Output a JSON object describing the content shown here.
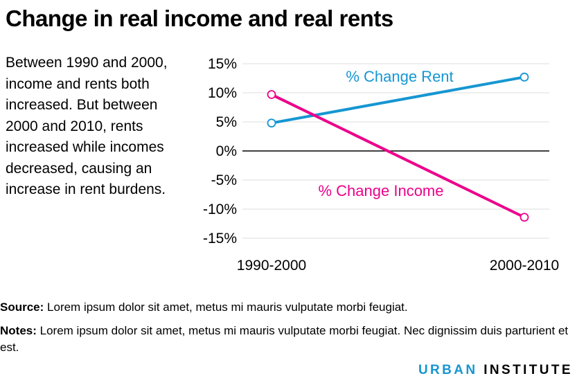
{
  "title": "Change in real income and real rents",
  "description": "Between 1990 and 2000, income and rents both increased. But between 2000 and 2010, rents increased while incomes decreased, causing an increase in rent burdens.",
  "chart_data": {
    "type": "line",
    "categories": [
      "1990-2000",
      "2000-2010"
    ],
    "series": [
      {
        "name": "% Change Rent",
        "values": [
          4.8,
          12.7
        ],
        "color": "#1696d2"
      },
      {
        "name": "% Change Income",
        "values": [
          9.7,
          -11.4
        ],
        "color": "#ec008b"
      }
    ],
    "y_ticks": [
      "15%",
      "10%",
      "5%",
      "0%",
      "-5%",
      "-10%",
      "-15%"
    ],
    "y_tick_values": [
      15,
      10,
      5,
      0,
      -5,
      -10,
      -15
    ],
    "ylim": [
      -15,
      15
    ],
    "grid": true,
    "legend": "inline labels",
    "title": "",
    "xlabel": "",
    "ylabel": ""
  },
  "footer": {
    "source_label": "Source:",
    "source_text": "Lorem ipsum dolor sit amet, metus mi mauris vulputate morbi feugiat.",
    "notes_label": "Notes:",
    "notes_text": "Lorem ipsum dolor sit amet, metus mi mauris vulputate morbi feugiat. Nec dignissim duis parturient et est."
  },
  "brand": {
    "part1": "URBAN",
    "part2": "INSTITUTE"
  }
}
